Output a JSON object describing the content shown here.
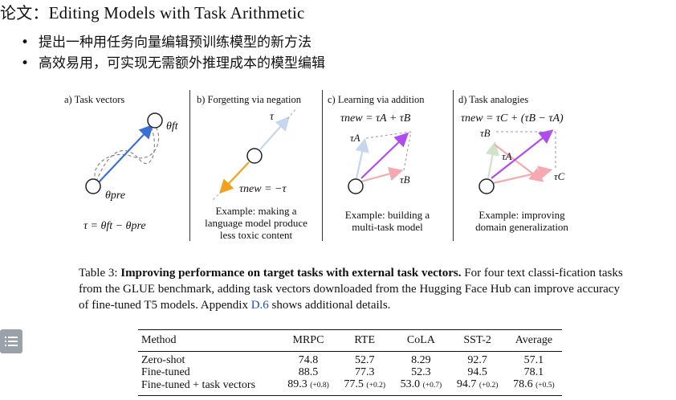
{
  "title": {
    "prefix": "论文：",
    "text": "Editing Models with Task Arithmetic"
  },
  "bullets": [
    "提出一种用任务向量编辑预训练模型的新方法",
    "高效易用，可实现无需额外推理成本的模型编辑"
  ],
  "figure": {
    "panels": [
      {
        "title": "a) Task vectors",
        "label_ft": "θft",
        "label_pre": "θpre",
        "formula": "τ = θft − θpre"
      },
      {
        "title": "b) Forgetting via negation",
        "label_tau": "τ",
        "label_new": "τnew = −τ",
        "caption": [
          "Example: making a",
          "language model produce",
          "less toxic content"
        ]
      },
      {
        "title": "c) Learning via addition",
        "formula": "τnew = τA + τB",
        "label_a": "τA",
        "label_b": "τB",
        "caption": [
          "Example: building a",
          "multi-task model"
        ]
      },
      {
        "title": "d) Task analogies",
        "formula": "τnew = τC + (τB − τA)",
        "label_a": "τA",
        "label_b": "τB",
        "label_c": "τC",
        "caption": [
          "Example: improving",
          "domain generalization"
        ]
      }
    ],
    "colors": {
      "blue": "#3a6fd8",
      "orange": "#f2a21a",
      "lightblue": "#c6d6ee",
      "pink": "#f6a9b0",
      "purple": "#b04bf0",
      "green": "#cfe3c7",
      "gray": "#777777"
    }
  },
  "table_caption": {
    "label": "Table 3: ",
    "bold": "Improving performance on target tasks with external task vectors.",
    "text": " For four text classi-fication tasks from the GLUE benchmark, adding task vectors downloaded from the Hugging Face Hub can improve accuracy of fine-tuned T5 models. Appendix ",
    "link": "D.6",
    "tail": " shows additional details."
  },
  "table": {
    "headers": [
      "Method",
      "MRPC",
      "RTE",
      "CoLA",
      "SST-2",
      "Average"
    ],
    "rows": [
      {
        "method": "Zero-shot",
        "values": [
          "74.8",
          "52.7",
          "8.29",
          "92.7",
          "57.1"
        ],
        "deltas": [
          "",
          "",
          "",
          "",
          ""
        ]
      },
      {
        "method": "Fine-tuned",
        "values": [
          "88.5",
          "77.3",
          "52.3",
          "94.5",
          "78.1"
        ],
        "deltas": [
          "",
          "",
          "",
          "",
          ""
        ]
      },
      {
        "method": "Fine-tuned + task vectors",
        "values": [
          "89.3",
          "77.5",
          "53.0",
          "94.7",
          "78.6"
        ],
        "deltas": [
          "(+0.8)",
          "(+0.2)",
          "(+0.7)",
          "(+0.2)",
          "(+0.5)"
        ]
      }
    ]
  },
  "side_menu": {
    "icon": "list-icon"
  }
}
